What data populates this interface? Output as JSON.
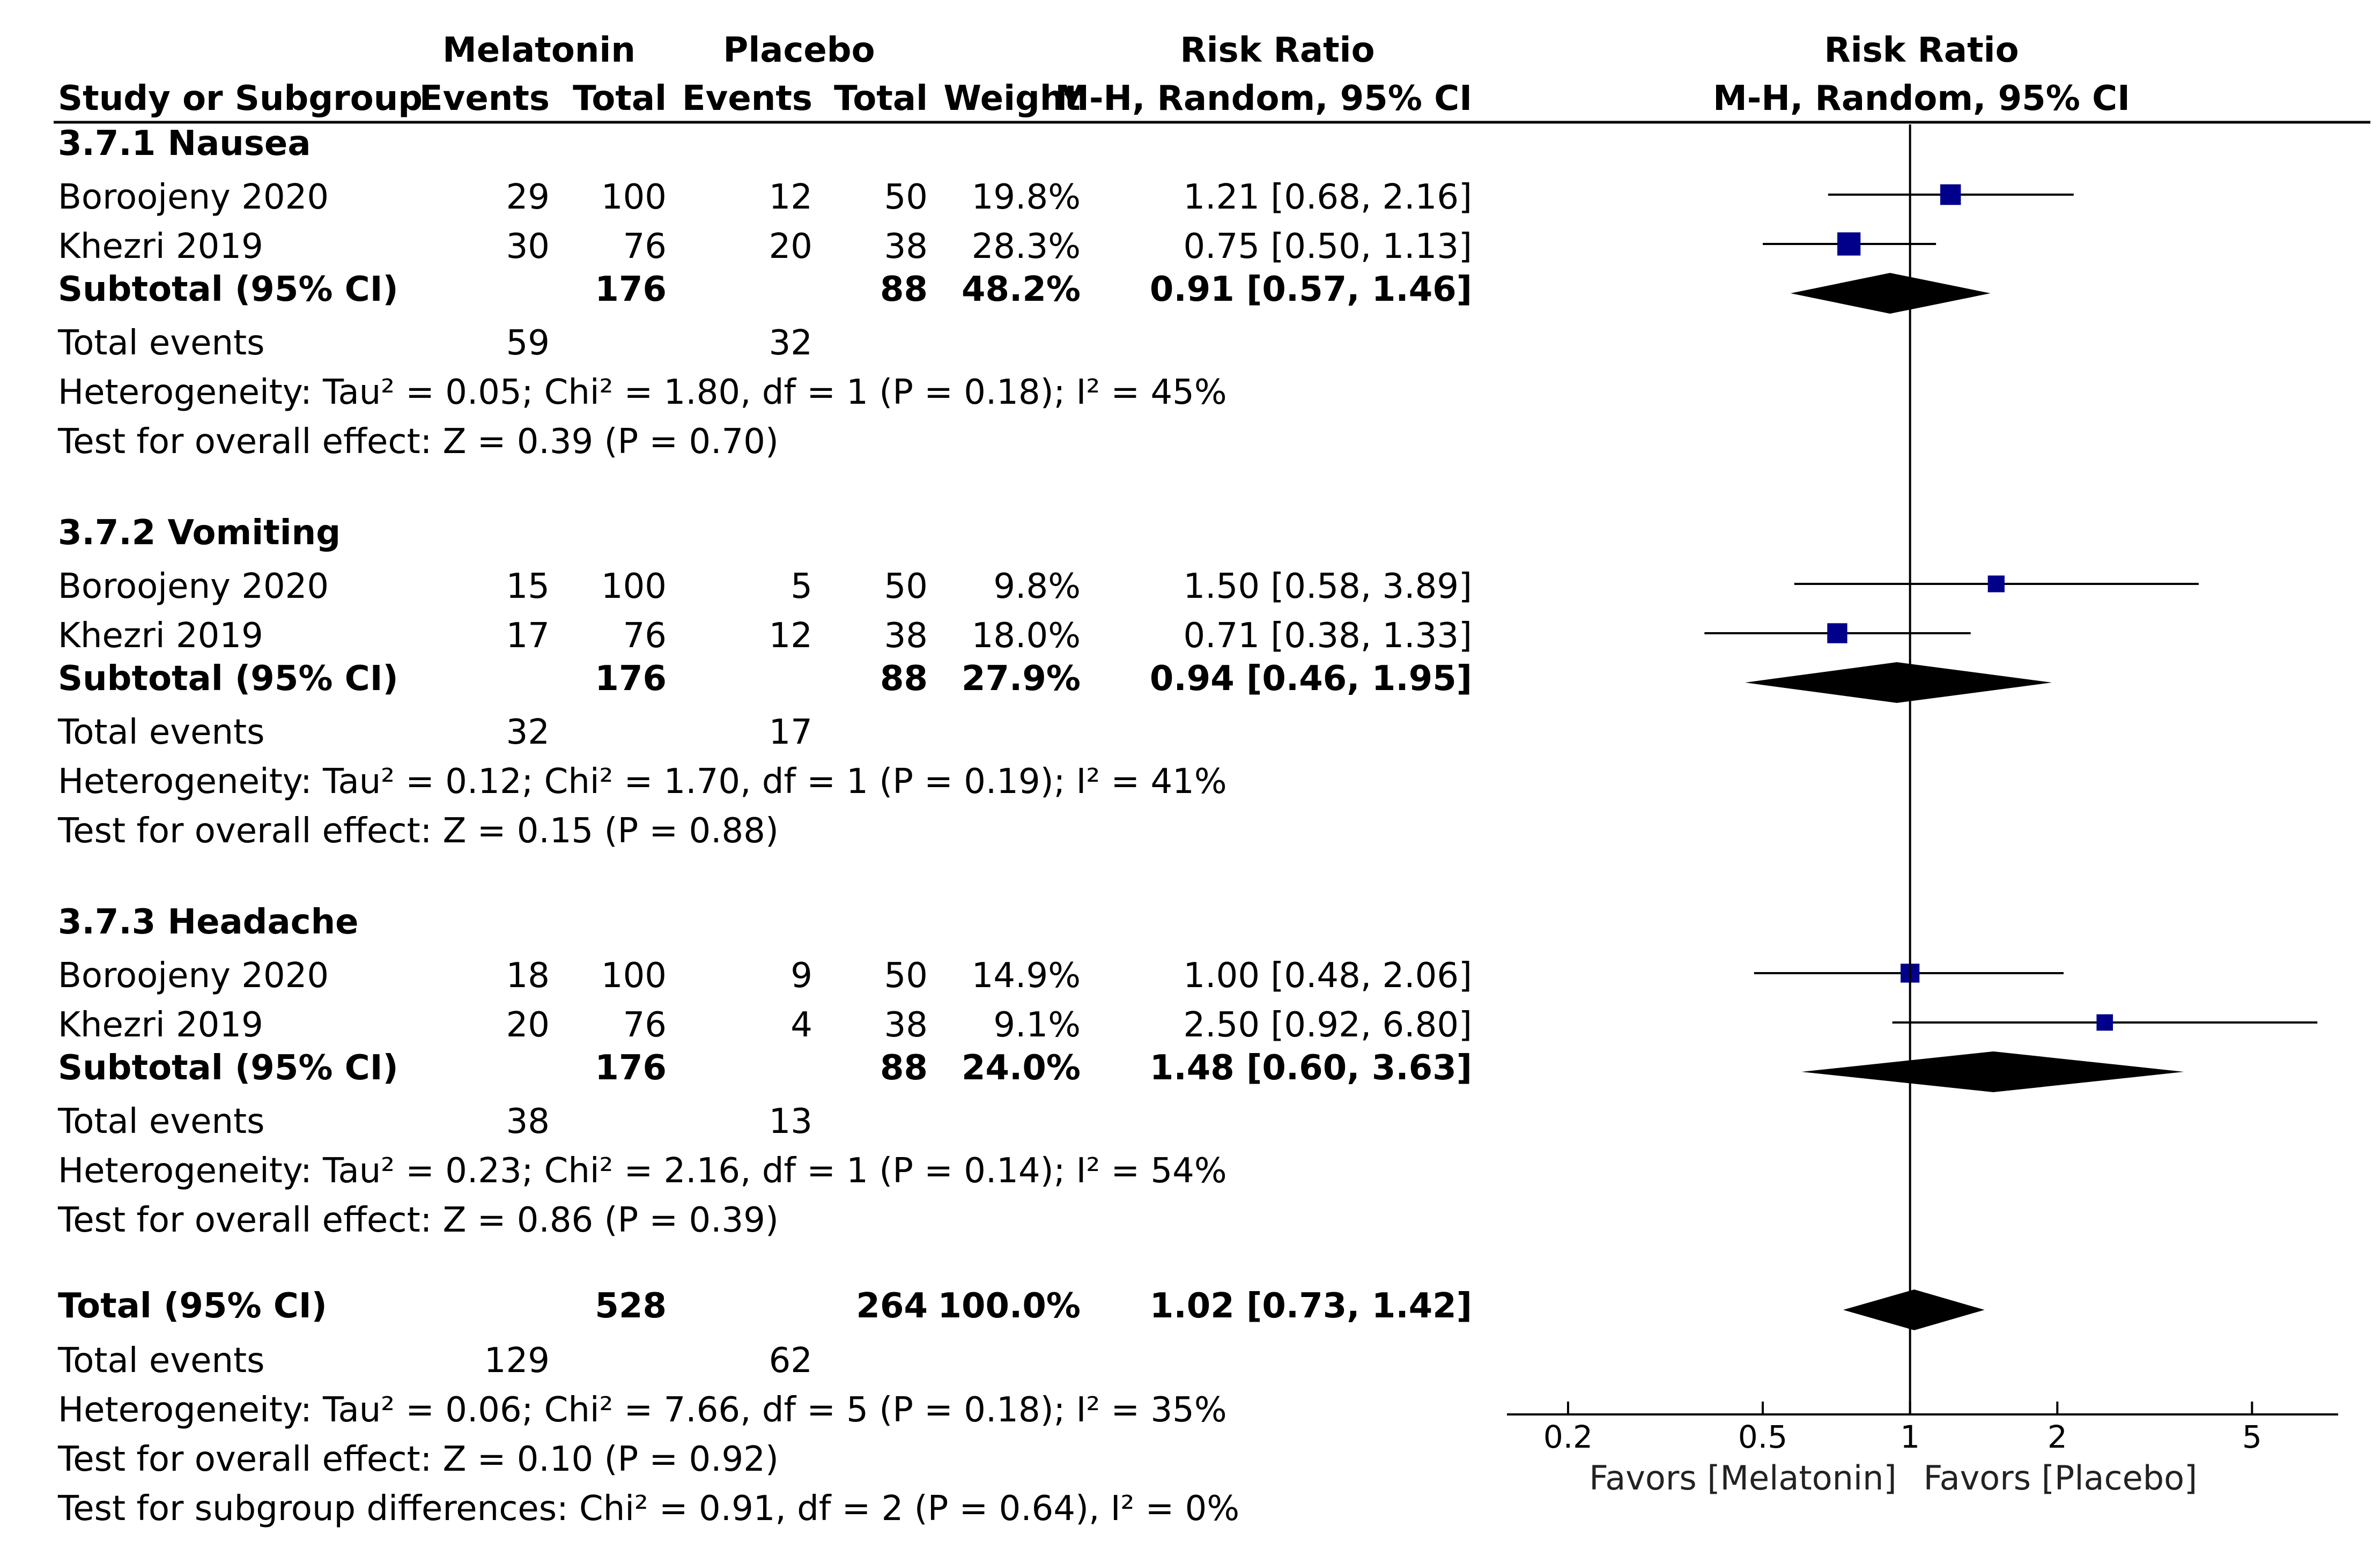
{
  "header": {
    "group_melatonin": "Melatonin",
    "group_placebo": "Placebo",
    "rr_col_title": "Risk Ratio",
    "plot_title": "Risk Ratio",
    "study_col": "Study or Subgroup",
    "events": "Events",
    "total": "Total",
    "weight": "Weight",
    "rr_method": "M-H, Random, 95% CI",
    "plot_method": "M-H, Random, 95% CI"
  },
  "chart_data": {
    "type": "forest",
    "measure": "Risk Ratio",
    "x_scale": "log",
    "xlim": [
      0.15,
      7.5
    ],
    "ticks": [
      0.2,
      0.5,
      1,
      2,
      5
    ],
    "tick_labels": [
      "0.2",
      "0.5",
      "1",
      "2",
      "5"
    ],
    "null_value": 1,
    "favors_left": "Favors [Melatonin]",
    "favors_right": "Favors [Placebo]",
    "colors": {
      "square": "#00008B",
      "line": "#000000",
      "diamond": "#000000"
    },
    "subgroups": [
      {
        "title": "3.7.1 Nausea",
        "studies": [
          {
            "name": "Boroojeny 2020",
            "e1": "29",
            "n1": "100",
            "e2": "12",
            "n2": "50",
            "weight": "19.8%",
            "ci_text": "1.21 [0.68, 2.16]",
            "rr": 1.21,
            "lo": 0.68,
            "hi": 2.16
          },
          {
            "name": "Khezri 2019",
            "e1": "30",
            "n1": "76",
            "e2": "20",
            "n2": "38",
            "weight": "28.3%",
            "ci_text": "0.75 [0.50, 1.13]",
            "rr": 0.75,
            "lo": 0.5,
            "hi": 1.13
          }
        ],
        "subtotal": {
          "label": "Subtotal (95% CI)",
          "n1": "176",
          "n2": "88",
          "weight": "48.2%",
          "ci_text": "0.91 [0.57, 1.46]",
          "rr": 0.91,
          "lo": 0.57,
          "hi": 1.46
        },
        "total_events": {
          "label": "Total events",
          "e1": "59",
          "e2": "32"
        },
        "heterogeneity": "Heterogeneity: Tau² = 0.05; Chi² = 1.80, df = 1 (P = 0.18); I² = 45%",
        "overall": "Test for overall effect: Z = 0.39 (P = 0.70)"
      },
      {
        "title": "3.7.2 Vomiting",
        "studies": [
          {
            "name": "Boroojeny 2020",
            "e1": "15",
            "n1": "100",
            "e2": "5",
            "n2": "50",
            "weight": "9.8%",
            "ci_text": "1.50 [0.58, 3.89]",
            "rr": 1.5,
            "lo": 0.58,
            "hi": 3.89
          },
          {
            "name": "Khezri 2019",
            "e1": "17",
            "n1": "76",
            "e2": "12",
            "n2": "38",
            "weight": "18.0%",
            "ci_text": "0.71 [0.38, 1.33]",
            "rr": 0.71,
            "lo": 0.38,
            "hi": 1.33
          }
        ],
        "subtotal": {
          "label": "Subtotal (95% CI)",
          "n1": "176",
          "n2": "88",
          "weight": "27.9%",
          "ci_text": "0.94 [0.46, 1.95]",
          "rr": 0.94,
          "lo": 0.46,
          "hi": 1.95
        },
        "total_events": {
          "label": "Total events",
          "e1": "32",
          "e2": "17"
        },
        "heterogeneity": "Heterogeneity: Tau² = 0.12; Chi² = 1.70, df = 1 (P = 0.19); I² = 41%",
        "overall": "Test for overall effect: Z = 0.15 (P = 0.88)"
      },
      {
        "title": "3.7.3 Headache",
        "studies": [
          {
            "name": "Boroojeny 2020",
            "e1": "18",
            "n1": "100",
            "e2": "9",
            "n2": "50",
            "weight": "14.9%",
            "ci_text": "1.00 [0.48, 2.06]",
            "rr": 1.0,
            "lo": 0.48,
            "hi": 2.06
          },
          {
            "name": "Khezri 2019",
            "e1": "20",
            "n1": "76",
            "e2": "4",
            "n2": "38",
            "weight": "9.1%",
            "ci_text": "2.50 [0.92, 6.80]",
            "rr": 2.5,
            "lo": 0.92,
            "hi": 6.8
          }
        ],
        "subtotal": {
          "label": "Subtotal (95% CI)",
          "n1": "176",
          "n2": "88",
          "weight": "24.0%",
          "ci_text": "1.48 [0.60, 3.63]",
          "rr": 1.48,
          "lo": 0.6,
          "hi": 3.63
        },
        "total_events": {
          "label": "Total events",
          "e1": "38",
          "e2": "13"
        },
        "heterogeneity": "Heterogeneity: Tau² = 0.23; Chi² = 2.16, df = 1 (P = 0.14); I² = 54%",
        "overall": "Test for overall effect: Z = 0.86 (P = 0.39)"
      }
    ],
    "total": {
      "label": "Total (95% CI)",
      "n1": "528",
      "n2": "264",
      "weight": "100.0%",
      "ci_text": "1.02 [0.73, 1.42]",
      "rr": 1.02,
      "lo": 0.73,
      "hi": 1.42,
      "total_events": {
        "label": "Total events",
        "e1": "129",
        "e2": "62"
      },
      "heterogeneity": "Heterogeneity: Tau² = 0.06; Chi² = 7.66, df = 5 (P = 0.18); I² = 35%",
      "overall": "Test for overall effect: Z = 0.10 (P = 0.92)",
      "subgroup_diff": "Test for subgroup differences: Chi² = 0.91, df = 2 (P = 0.64), I² = 0%"
    }
  }
}
